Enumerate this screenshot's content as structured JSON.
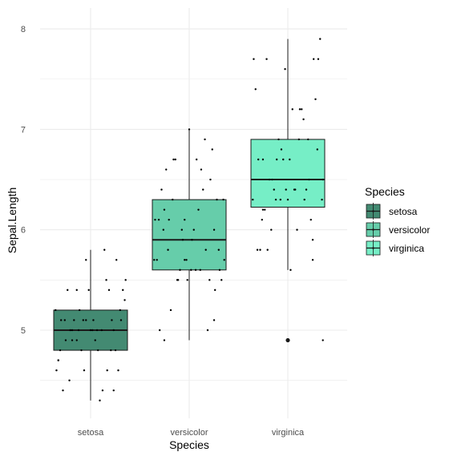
{
  "chart_data": {
    "type": "boxplot",
    "xlabel": "Species",
    "ylabel": "Sepal.Length",
    "categories": [
      "setosa",
      "versicolor",
      "virginica"
    ],
    "yticks": [
      5,
      6,
      7,
      8
    ],
    "ylim": [
      4.2,
      8.05
    ],
    "grid": true,
    "legend": {
      "title": "Species",
      "placement": "right",
      "entries": [
        "setosa",
        "versicolor",
        "virginica"
      ]
    },
    "colors": {
      "setosa": "#438a72",
      "versicolor": "#66cdaa",
      "virginica": "#76eec6",
      "grid": "#ebebeb",
      "points": "#000000"
    },
    "boxes": [
      {
        "name": "setosa",
        "min": 4.3,
        "q1": 4.8,
        "median": 5.0,
        "q3": 5.2,
        "max": 5.8,
        "outliers": []
      },
      {
        "name": "versicolor",
        "min": 4.9,
        "q1": 5.6,
        "median": 5.9,
        "q3": 6.3,
        "max": 7.0,
        "outliers": []
      },
      {
        "name": "virginica",
        "min": 5.6,
        "q1": 6.225,
        "median": 6.5,
        "q3": 6.9,
        "max": 7.9,
        "outliers": [
          4.9
        ]
      }
    ],
    "points": {
      "setosa": [
        {
          "x": 0.03,
          "y": 5.1
        },
        {
          "x": -0.2,
          "y": 4.9
        },
        {
          "x": -0.35,
          "y": 4.7
        },
        {
          "x": 0.18,
          "y": 4.6
        },
        {
          "x": 0.25,
          "y": 5.0
        },
        {
          "x": -0.15,
          "y": 5.4
        },
        {
          "x": -0.37,
          "y": 4.6
        },
        {
          "x": 0.12,
          "y": 5.0
        },
        {
          "x": -0.3,
          "y": 4.4
        },
        {
          "x": 0.05,
          "y": 4.9
        },
        {
          "x": -0.25,
          "y": 5.4
        },
        {
          "x": 0.08,
          "y": 4.8
        },
        {
          "x": -0.1,
          "y": 4.8
        },
        {
          "x": 0.1,
          "y": 4.3
        },
        {
          "x": 0.15,
          "y": 5.8
        },
        {
          "x": -0.05,
          "y": 5.7
        },
        {
          "x": 0.35,
          "y": 5.4
        },
        {
          "x": -0.28,
          "y": 5.1
        },
        {
          "x": 0.28,
          "y": 5.7
        },
        {
          "x": -0.18,
          "y": 5.1
        },
        {
          "x": 0.2,
          "y": 5.4
        },
        {
          "x": -0.32,
          "y": 5.1
        },
        {
          "x": 0.3,
          "y": 4.6
        },
        {
          "x": -0.08,
          "y": 5.1
        },
        {
          "x": 0.22,
          "y": 4.8
        },
        {
          "x": -0.22,
          "y": 5.0
        },
        {
          "x": 0.0,
          "y": 5.0
        },
        {
          "x": -0.12,
          "y": 5.2
        },
        {
          "x": 0.32,
          "y": 5.2
        },
        {
          "x": -0.35,
          "y": 4.7
        },
        {
          "x": 0.27,
          "y": 4.8
        },
        {
          "x": -0.02,
          "y": 5.4
        },
        {
          "x": -0.38,
          "y": 5.2
        },
        {
          "x": 0.38,
          "y": 5.5
        },
        {
          "x": -0.15,
          "y": 4.9
        },
        {
          "x": 0.02,
          "y": 5.0
        },
        {
          "x": 0.17,
          "y": 5.5
        },
        {
          "x": -0.27,
          "y": 4.9
        },
        {
          "x": 0.25,
          "y": 4.4
        },
        {
          "x": -0.05,
          "y": 5.1
        },
        {
          "x": 0.07,
          "y": 5.0
        },
        {
          "x": -0.23,
          "y": 4.5
        },
        {
          "x": 0.13,
          "y": 4.4
        },
        {
          "x": -0.13,
          "y": 5.0
        },
        {
          "x": 0.33,
          "y": 5.1
        },
        {
          "x": -0.33,
          "y": 4.8
        },
        {
          "x": 0.23,
          "y": 5.1
        },
        {
          "x": -0.07,
          "y": 4.6
        },
        {
          "x": 0.37,
          "y": 5.3
        },
        {
          "x": -0.2,
          "y": 5.0
        }
      ],
      "versicolor": [
        {
          "x": 0.0,
          "y": 7.0
        },
        {
          "x": -0.3,
          "y": 6.4
        },
        {
          "x": 0.17,
          "y": 6.9
        },
        {
          "x": -0.13,
          "y": 5.5
        },
        {
          "x": 0.23,
          "y": 6.5
        },
        {
          "x": -0.03,
          "y": 5.7
        },
        {
          "x": 0.3,
          "y": 6.3
        },
        {
          "x": -0.27,
          "y": 4.9
        },
        {
          "x": 0.13,
          "y": 6.6
        },
        {
          "x": -0.2,
          "y": 5.2
        },
        {
          "x": 0.2,
          "y": 5.0
        },
        {
          "x": -0.07,
          "y": 5.9
        },
        {
          "x": 0.27,
          "y": 6.0
        },
        {
          "x": -0.33,
          "y": 6.1
        },
        {
          "x": 0.07,
          "y": 5.6
        },
        {
          "x": -0.17,
          "y": 6.7
        },
        {
          "x": 0.33,
          "y": 5.6
        },
        {
          "x": -0.23,
          "y": 5.8
        },
        {
          "x": 0.1,
          "y": 6.2
        },
        {
          "x": -0.1,
          "y": 5.6
        },
        {
          "x": 0.03,
          "y": 5.9
        },
        {
          "x": -0.37,
          "y": 6.1
        },
        {
          "x": 0.37,
          "y": 6.3
        },
        {
          "x": -0.05,
          "y": 6.1
        },
        {
          "x": 0.15,
          "y": 6.4
        },
        {
          "x": -0.25,
          "y": 6.6
        },
        {
          "x": 0.25,
          "y": 6.8
        },
        {
          "x": -0.15,
          "y": 6.7
        },
        {
          "x": 0.05,
          "y": 6.0
        },
        {
          "x": -0.35,
          "y": 5.7
        },
        {
          "x": 0.35,
          "y": 5.5
        },
        {
          "x": -0.02,
          "y": 5.5
        },
        {
          "x": 0.18,
          "y": 5.8
        },
        {
          "x": -0.28,
          "y": 6.0
        },
        {
          "x": 0.28,
          "y": 5.4
        },
        {
          "x": -0.08,
          "y": 6.0
        },
        {
          "x": 0.08,
          "y": 6.7
        },
        {
          "x": -0.18,
          "y": 6.3
        },
        {
          "x": 0.12,
          "y": 5.6
        },
        {
          "x": -0.12,
          "y": 5.5
        },
        {
          "x": 0.22,
          "y": 5.5
        },
        {
          "x": -0.22,
          "y": 6.1
        },
        {
          "x": 0.32,
          "y": 5.8
        },
        {
          "x": -0.32,
          "y": 5.0
        },
        {
          "x": 0.02,
          "y": 5.6
        },
        {
          "x": -0.38,
          "y": 5.7
        },
        {
          "x": 0.38,
          "y": 5.7
        },
        {
          "x": -0.27,
          "y": 6.2
        },
        {
          "x": 0.27,
          "y": 5.1
        },
        {
          "x": -0.05,
          "y": 5.7
        }
      ],
      "virginica": [
        {
          "x": 0.0,
          "y": 6.3
        },
        {
          "x": -0.3,
          "y": 5.8
        },
        {
          "x": 0.17,
          "y": 7.1
        },
        {
          "x": -0.13,
          "y": 6.3
        },
        {
          "x": 0.23,
          "y": 6.5
        },
        {
          "x": -0.03,
          "y": 7.6
        },
        {
          "x": 0.3,
          "y": 7.3
        },
        {
          "x": -0.27,
          "y": 6.7
        },
        {
          "x": 0.13,
          "y": 7.2
        },
        {
          "x": -0.2,
          "y": 6.5
        },
        {
          "x": 0.2,
          "y": 6.4
        },
        {
          "x": -0.07,
          "y": 6.8
        },
        {
          "x": 0.27,
          "y": 5.7
        },
        {
          "x": -0.33,
          "y": 5.8
        },
        {
          "x": 0.07,
          "y": 6.4
        },
        {
          "x": -0.17,
          "y": 6.5
        },
        {
          "x": 0.33,
          "y": 7.7
        },
        {
          "x": -0.23,
          "y": 7.7
        },
        {
          "x": 0.1,
          "y": 6.0
        },
        {
          "x": -0.1,
          "y": 6.9
        },
        {
          "x": 0.03,
          "y": 5.6
        },
        {
          "x": -0.37,
          "y": 7.7
        },
        {
          "x": 0.37,
          "y": 6.3
        },
        {
          "x": -0.05,
          "y": 6.7
        },
        {
          "x": 0.15,
          "y": 7.2
        },
        {
          "x": -0.25,
          "y": 6.2
        },
        {
          "x": 0.25,
          "y": 6.1
        },
        {
          "x": -0.15,
          "y": 6.4
        },
        {
          "x": 0.05,
          "y": 7.2
        },
        {
          "x": -0.35,
          "y": 7.4
        },
        {
          "x": 0.35,
          "y": 7.9
        },
        {
          "x": -0.02,
          "y": 6.4
        },
        {
          "x": 0.18,
          "y": 6.3
        },
        {
          "x": -0.28,
          "y": 6.1
        },
        {
          "x": 0.28,
          "y": 7.7
        },
        {
          "x": -0.08,
          "y": 6.3
        },
        {
          "x": 0.08,
          "y": 6.4
        },
        {
          "x": -0.18,
          "y": 6.0
        },
        {
          "x": 0.12,
          "y": 6.9
        },
        {
          "x": -0.12,
          "y": 6.7
        },
        {
          "x": 0.22,
          "y": 6.9
        },
        {
          "x": -0.22,
          "y": 5.8
        },
        {
          "x": 0.32,
          "y": 6.8
        },
        {
          "x": -0.32,
          "y": 6.7
        },
        {
          "x": 0.02,
          "y": 6.7
        },
        {
          "x": -0.38,
          "y": 6.3
        },
        {
          "x": 0.38,
          "y": 6.5
        },
        {
          "x": -0.27,
          "y": 6.2
        },
        {
          "x": 0.27,
          "y": 5.9
        },
        {
          "x": 0.38,
          "y": 4.9
        }
      ]
    }
  }
}
